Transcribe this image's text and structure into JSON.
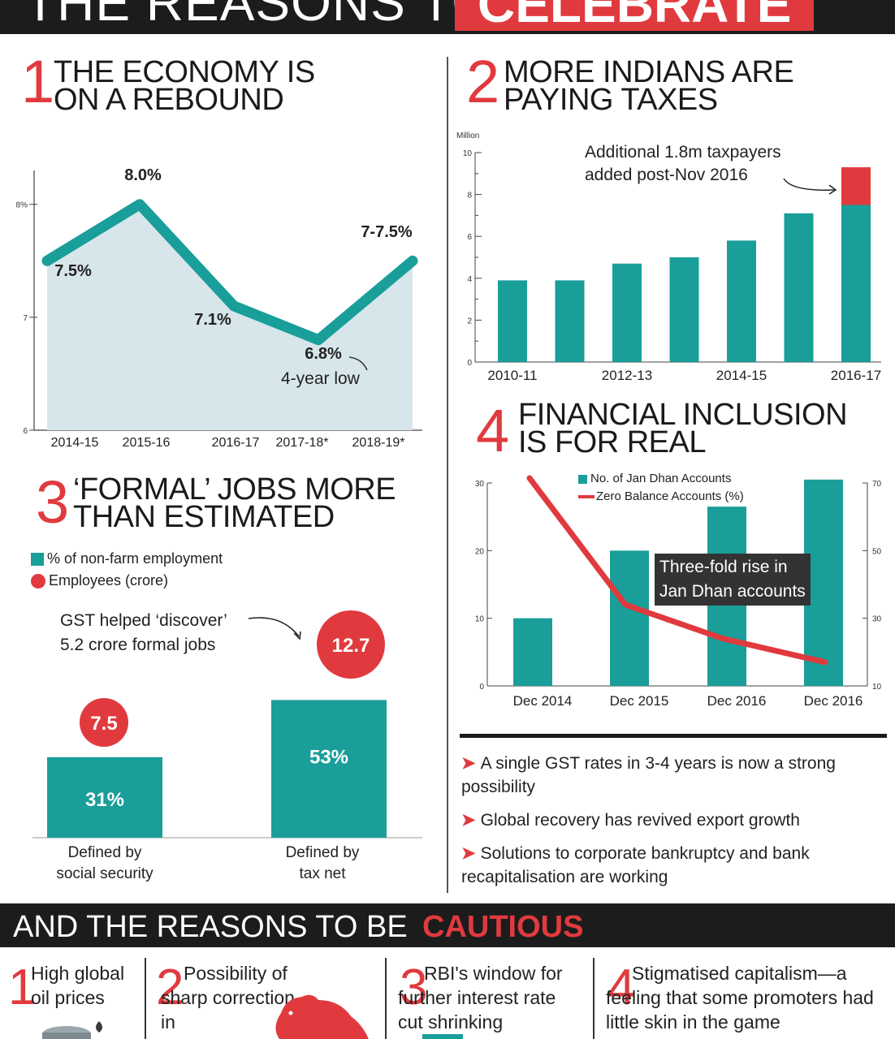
{
  "header": {
    "title_part1": "THE REASONS TO",
    "title_part2": "CELEBRATE"
  },
  "section1": {
    "number": "1",
    "heading_line1": "THE ECONOMY IS",
    "heading_line2": "ON A REBOUND",
    "annotation": "4-year low"
  },
  "section2": {
    "number": "2",
    "heading_line1": "MORE INDIANS ARE",
    "heading_line2": "PAYING TAXES",
    "unit": "Million",
    "annotation_line1": "Additional 1.8m taxpayers",
    "annotation_line2": "added post-Nov 2016"
  },
  "section3": {
    "number": "3",
    "heading_line1": "‘FORMAL’ JOBS MORE",
    "heading_line2": "THAN ESTIMATED",
    "legend_bar": "% of non-farm employment",
    "legend_circle": "Employees (crore)",
    "annotation_line1": "GST helped ‘discover’",
    "annotation_line2": "5.2 crore formal jobs"
  },
  "section4": {
    "number": "4",
    "heading_line1": "FINANCIAL INCLUSION",
    "heading_line2": "IS FOR REAL",
    "legend_bar": "No. of Jan Dhan Accounts",
    "legend_line": "Zero Balance Accounts (%)",
    "annotation_line1": "Three-fold rise in",
    "annotation_line2": "Jan Dhan accounts"
  },
  "bullets": [
    "A single GST rates in 3-4 years is now a strong possibility",
    "Global recovery has revived export growth",
    "Solutions to corporate bankruptcy and bank recapitalisation are working"
  ],
  "cautious": {
    "title_part1": "AND THE REASONS TO BE",
    "title_part2": "CAUTIOUS",
    "items": [
      {
        "number": "1",
        "text": "High global oil prices"
      },
      {
        "number": "2",
        "text": "Possibility of sharp correction in"
      },
      {
        "number": "3",
        "text": "RBI's window for further interest rate cut shrinking"
      },
      {
        "number": "4",
        "text": "Stigmatised capitalism—a feeling that some promoters had little skin in the game"
      }
    ]
  },
  "chart_data": [
    {
      "type": "area",
      "id": "gdp-growth",
      "categories": [
        "2014-15",
        "2015-16",
        "2016-17",
        "2017-18*",
        "2018-19*"
      ],
      "values": [
        7.5,
        8.0,
        7.1,
        6.8,
        7.5
      ],
      "data_labels": [
        "7.5%",
        "8.0%",
        "7.1%",
        "6.8%",
        "7-7.5%"
      ],
      "ylim": [
        6,
        8.3
      ],
      "yticks": [
        "6",
        "7",
        "8%"
      ],
      "color": "#1a9e9a",
      "fill": "#d7e6eb"
    },
    {
      "type": "bar",
      "id": "taxpayers",
      "categories": [
        "2010-11",
        "2011-12",
        "2012-13",
        "2013-14",
        "2014-15",
        "2015-16",
        "2016-17"
      ],
      "x_labels_shown": [
        "2010-11",
        "2012-13",
        "2014-15",
        "2016-17"
      ],
      "values": [
        3.9,
        3.9,
        4.7,
        5.0,
        5.8,
        7.1,
        7.5
      ],
      "stacked_addition": [
        0,
        0,
        0,
        0,
        0,
        0,
        1.8
      ],
      "ylabel": "Million",
      "ylim": [
        0,
        10
      ],
      "yticks": [
        0,
        2,
        4,
        6,
        8,
        10
      ],
      "color": "#1a9e9a",
      "addition_color": "#e03a3e"
    },
    {
      "type": "bar",
      "id": "formal-jobs",
      "categories": [
        "Defined by social security",
        "Defined by tax net"
      ],
      "category_lines": [
        [
          "Defined by",
          "social security"
        ],
        [
          "Defined by",
          "tax net"
        ]
      ],
      "series": [
        {
          "name": "% of non-farm employment",
          "values": [
            31,
            53
          ],
          "labels": [
            "31%",
            "53%"
          ]
        },
        {
          "name": "Employees (crore)",
          "values": [
            7.5,
            12.7
          ],
          "labels": [
            "7.5",
            "12.7"
          ]
        }
      ],
      "color": "#1a9e9a",
      "circle_color": "#e03a3e"
    },
    {
      "type": "bar",
      "id": "jan-dhan",
      "categories": [
        "Dec 2014",
        "Dec 2015",
        "Dec 2016",
        "Dec 2016"
      ],
      "series": [
        {
          "name": "No. of Jan Dhan Accounts",
          "values": [
            10,
            20,
            26.5,
            30.5
          ],
          "axis": "left"
        },
        {
          "name": "Zero Balance Accounts (%)",
          "values": [
            76,
            34,
            24,
            17
          ],
          "axis": "right",
          "type": "line"
        }
      ],
      "ylim_left": [
        0,
        30
      ],
      "yticks_left": [
        0,
        10,
        20,
        30
      ],
      "ylim_right": [
        10,
        70
      ],
      "yticks_right": [
        10,
        30,
        50,
        70
      ],
      "color": "#1a9e9a",
      "line_color": "#e03a3e"
    }
  ]
}
